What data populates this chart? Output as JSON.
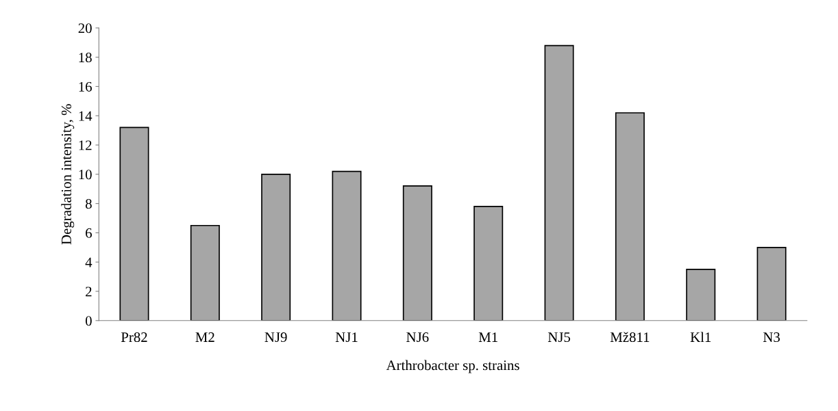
{
  "chart_data": {
    "type": "bar",
    "xlabel": "Arthrobacter sp. strains",
    "ylabel": "Degradation intensity, %",
    "categories": [
      "Pr82",
      "M2",
      "NJ9",
      "NJ1",
      "NJ6",
      "M1",
      "NJ5",
      "Mž811",
      "Kl1",
      "N3"
    ],
    "values": [
      13.2,
      6.5,
      10.0,
      10.2,
      9.2,
      7.8,
      18.8,
      14.2,
      3.5,
      5.0
    ],
    "color": "#a6a6a6",
    "ylim": [
      0,
      20
    ],
    "yticks": [
      0,
      2,
      4,
      6,
      8,
      10,
      12,
      14,
      16,
      18,
      20
    ],
    "grid": false
  }
}
